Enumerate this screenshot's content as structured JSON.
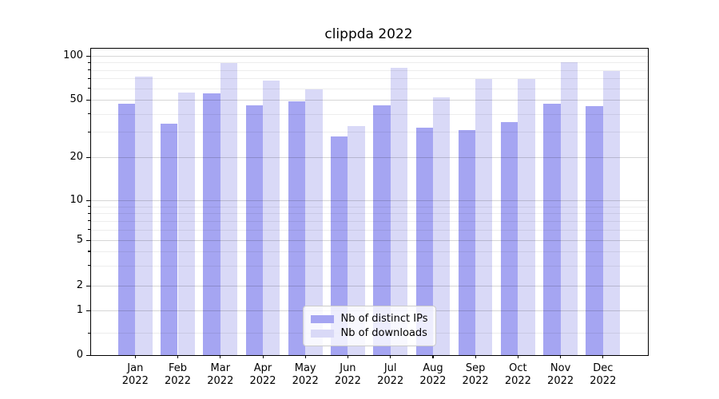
{
  "title": "clippda 2022",
  "chart_data": {
    "type": "bar",
    "title": "clippda 2022",
    "categories": [
      "Jan 2022",
      "Feb 2022",
      "Mar 2022",
      "Apr 2022",
      "May 2022",
      "Jun 2022",
      "Jul 2022",
      "Aug 2022",
      "Sep 2022",
      "Oct 2022",
      "Nov 2022",
      "Dec 2022"
    ],
    "series": [
      {
        "name": "Nb of distinct IPs",
        "color": "#a5a5f2",
        "values": [
          47,
          34,
          55,
          46,
          49,
          28,
          46,
          32,
          31,
          35,
          47,
          45
        ]
      },
      {
        "name": "Nb of downloads",
        "color": "#d9d9f7",
        "values": [
          72,
          56,
          89,
          68,
          59,
          33,
          83,
          52,
          69,
          69,
          90,
          79
        ]
      }
    ],
    "xlabel": "",
    "ylabel": "",
    "yscale": "symlog",
    "y_ticks": [
      0,
      1,
      2,
      5,
      10,
      20,
      50,
      100
    ],
    "ylim": [
      0,
      104
    ],
    "grid": "both",
    "legend_position": "lower center"
  },
  "legend": {
    "entries": [
      "Nb of distinct IPs",
      "Nb of downloads"
    ]
  },
  "colors": {
    "bar_dark": "#a5a5f2",
    "bar_light": "#d9d9f7",
    "grid_major": "#d6d6d6",
    "grid_minor": "#ececec",
    "spine": "#000000",
    "background": "#ffffff"
  }
}
